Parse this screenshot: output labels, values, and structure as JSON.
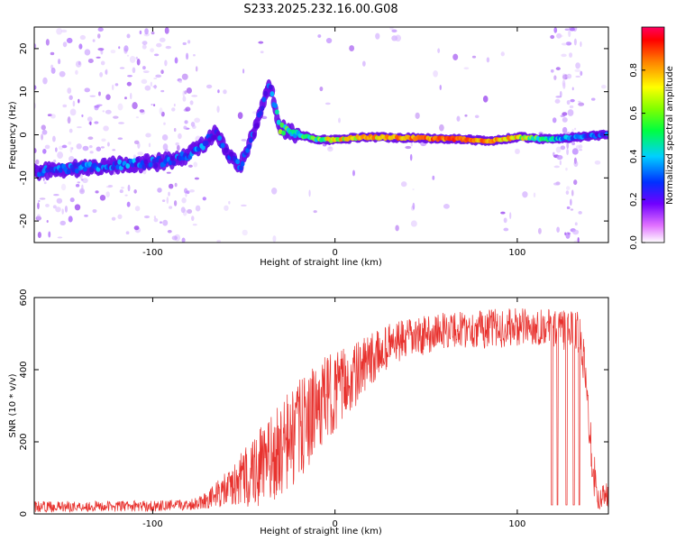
{
  "title": "S233.2025.232.16.00.G08",
  "colors": {
    "snr_line": "#e8322e",
    "ridge": [
      "#5a00d8",
      "#0048ff",
      "#00c8ff",
      "#00ff60",
      "#ffe000",
      "#ff3000"
    ]
  },
  "chart_data": [
    {
      "type": "heatmap",
      "name": "spectrogram",
      "xlabel": "Height of straight line (km)",
      "ylabel": "Frequency (Hz)",
      "xlim": [
        -165,
        150
      ],
      "ylim": [
        -25,
        25
      ],
      "xticks": [
        -100,
        0,
        100
      ],
      "yticks": [
        -20,
        -10,
        0,
        10,
        20
      ],
      "colorbar": {
        "label": "Normalized spectral amplitude",
        "range": [
          0,
          1
        ],
        "ticks": [
          "0.0",
          "0.2",
          "0.4",
          "0.6",
          "0.8"
        ]
      },
      "ridge": [
        {
          "x": -165,
          "f": -8.5,
          "a": 0.25
        },
        {
          "x": -150,
          "f": -8.0,
          "a": 0.3
        },
        {
          "x": -140,
          "f": -7.8,
          "a": 0.35
        },
        {
          "x": -125,
          "f": -7.2,
          "a": 0.3
        },
        {
          "x": -115,
          "f": -6.8,
          "a": 0.35
        },
        {
          "x": -100,
          "f": -6.5,
          "a": 0.3
        },
        {
          "x": -90,
          "f": -6.0,
          "a": 0.28
        },
        {
          "x": -80,
          "f": -4.5,
          "a": 0.3
        },
        {
          "x": -72,
          "f": -2.0,
          "a": 0.32
        },
        {
          "x": -65,
          "f": 0.5,
          "a": 0.3
        },
        {
          "x": -60,
          "f": -4.0,
          "a": 0.25
        },
        {
          "x": -52,
          "f": -7.5,
          "a": 0.28
        },
        {
          "x": -45,
          "f": 0.0,
          "a": 0.3
        },
        {
          "x": -40,
          "f": 6.0,
          "a": 0.32
        },
        {
          "x": -36,
          "f": 12.0,
          "a": 0.25
        },
        {
          "x": -30,
          "f": 1.5,
          "a": 0.55
        },
        {
          "x": -20,
          "f": 0.0,
          "a": 0.5
        },
        {
          "x": -10,
          "f": -1.0,
          "a": 0.55
        },
        {
          "x": 0,
          "f": -1.2,
          "a": 0.7
        },
        {
          "x": 15,
          "f": -0.5,
          "a": 0.75
        },
        {
          "x": 30,
          "f": -0.6,
          "a": 0.8
        },
        {
          "x": 50,
          "f": -0.8,
          "a": 0.85
        },
        {
          "x": 70,
          "f": -1.0,
          "a": 0.9
        },
        {
          "x": 85,
          "f": -1.5,
          "a": 0.8
        },
        {
          "x": 100,
          "f": -0.5,
          "a": 0.75
        },
        {
          "x": 115,
          "f": -1.0,
          "a": 0.5
        },
        {
          "x": 135,
          "f": -0.5,
          "a": 0.3
        },
        {
          "x": 148,
          "f": 0.0,
          "a": 0.3
        }
      ]
    },
    {
      "type": "line",
      "name": "snr",
      "xlabel": "Height of straight line (km)",
      "ylabel": "SNR (10 * v/v)",
      "xlim": [
        -165,
        150
      ],
      "ylim": [
        0,
        600
      ],
      "xticks": [
        -100,
        0,
        100
      ],
      "yticks": [
        0,
        200,
        400,
        600
      ],
      "envelope": [
        {
          "x": -165,
          "mean": 20,
          "spread": 15
        },
        {
          "x": -100,
          "mean": 22,
          "spread": 15
        },
        {
          "x": -80,
          "mean": 25,
          "spread": 15
        },
        {
          "x": -70,
          "mean": 40,
          "spread": 25
        },
        {
          "x": -55,
          "mean": 80,
          "spread": 60
        },
        {
          "x": -45,
          "mean": 120,
          "spread": 110
        },
        {
          "x": -35,
          "mean": 150,
          "spread": 120
        },
        {
          "x": -25,
          "mean": 200,
          "spread": 150
        },
        {
          "x": -15,
          "mean": 260,
          "spread": 130
        },
        {
          "x": -5,
          "mean": 320,
          "spread": 120
        },
        {
          "x": 10,
          "mean": 380,
          "spread": 90
        },
        {
          "x": 30,
          "mean": 470,
          "spread": 60
        },
        {
          "x": 60,
          "mean": 510,
          "spread": 50
        },
        {
          "x": 90,
          "mean": 515,
          "spread": 55
        },
        {
          "x": 115,
          "mean": 520,
          "spread": 50
        },
        {
          "x": 135,
          "mean": 500,
          "spread": 60
        },
        {
          "x": 142,
          "mean": 120,
          "spread": 80
        },
        {
          "x": 145,
          "mean": 30,
          "spread": 30
        },
        {
          "x": 150,
          "mean": 80,
          "spread": 60
        }
      ],
      "dropouts": [
        {
          "x": 119,
          "y": 25
        },
        {
          "x": 122,
          "y": 25
        },
        {
          "x": 127,
          "y": 25
        },
        {
          "x": 131,
          "y": 25
        },
        {
          "x": 134,
          "y": 25
        }
      ]
    }
  ]
}
